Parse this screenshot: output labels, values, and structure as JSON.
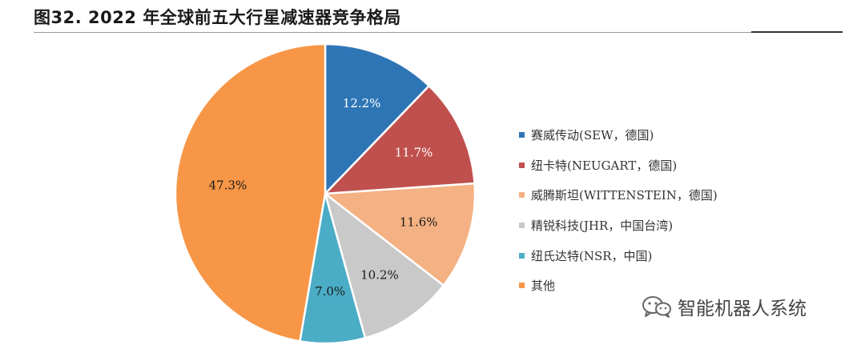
{
  "figure": {
    "title": "图32. 2022 年全球前五大行星减速器竞争格局"
  },
  "chart_data": {
    "type": "pie",
    "title": "",
    "unit": "%",
    "start_angle_deg": 0,
    "direction": "clockwise",
    "legend_position": "right",
    "slices": [
      {
        "label": "赛威传动(SEW，德国)",
        "value": 12.2,
        "value_label": "12.2%",
        "color": "#2E75B6",
        "text_color": "#ffffff"
      },
      {
        "label": "纽卡特(NEUGART，德国)",
        "value": 11.7,
        "value_label": "11.7%",
        "color": "#C0504D",
        "text_color": "#ffffff"
      },
      {
        "label": "威腾斯坦(WITTENSTEIN，德国)",
        "value": 11.6,
        "value_label": "11.6%",
        "color": "#F4B183",
        "text_color": "#1a1a1a"
      },
      {
        "label": "精锐科技(JHR，中国台湾)",
        "value": 10.2,
        "value_label": "10.2%",
        "color": "#C9C9C9",
        "text_color": "#1a1a1a"
      },
      {
        "label": "纽氏达特(NSR，中国)",
        "value": 7.0,
        "value_label": "7.0%",
        "color": "#4BACC6",
        "text_color": "#1a1a1a"
      },
      {
        "label": "其他",
        "value": 47.3,
        "value_label": "47.3%",
        "color": "#F79646",
        "text_color": "#1a1a1a"
      }
    ]
  },
  "watermark": {
    "icon": "wechat-icon",
    "text": "智能机器人系统"
  }
}
